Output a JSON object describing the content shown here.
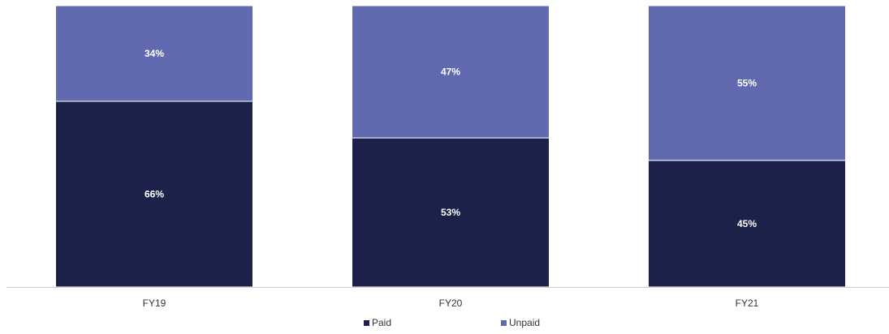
{
  "chart_data": {
    "type": "bar",
    "stacked": true,
    "categories": [
      "FY19",
      "FY20",
      "FY21"
    ],
    "series": [
      {
        "name": "Paid",
        "values": [
          66,
          53,
          45
        ],
        "labels": [
          "66%",
          "53%",
          "45%"
        ],
        "color": "#1b2149"
      },
      {
        "name": "Unpaid",
        "values": [
          34,
          47,
          55
        ],
        "labels": [
          "34%",
          "47%",
          "55%"
        ],
        "color": "#616ab1"
      }
    ],
    "ylim": [
      0,
      100
    ],
    "grid": false,
    "legend_position": "bottom"
  }
}
